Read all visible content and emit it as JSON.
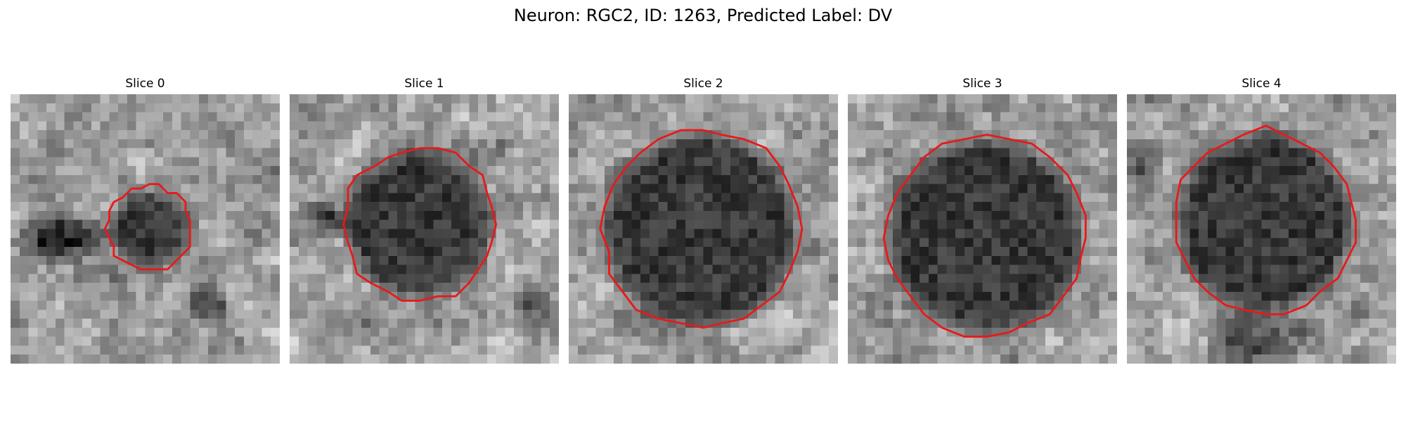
{
  "figure": {
    "title": "Neuron: RGC2, ID: 1263, Predicted Label: DV"
  },
  "panels": [
    {
      "title": "Slice 0",
      "contour_color": "#e8191b",
      "soma_radius_fraction": 0.15
    },
    {
      "title": "Slice 1",
      "contour_color": "#e8191b",
      "soma_radius_fraction": 0.28
    },
    {
      "title": "Slice 2",
      "contour_color": "#e8191b",
      "soma_radius_fraction": 0.36
    },
    {
      "title": "Slice 3",
      "contour_color": "#e8191b",
      "soma_radius_fraction": 0.36
    },
    {
      "title": "Slice 4",
      "contour_color": "#e8191b",
      "soma_radius_fraction": 0.33
    }
  ],
  "colormap": "gray"
}
